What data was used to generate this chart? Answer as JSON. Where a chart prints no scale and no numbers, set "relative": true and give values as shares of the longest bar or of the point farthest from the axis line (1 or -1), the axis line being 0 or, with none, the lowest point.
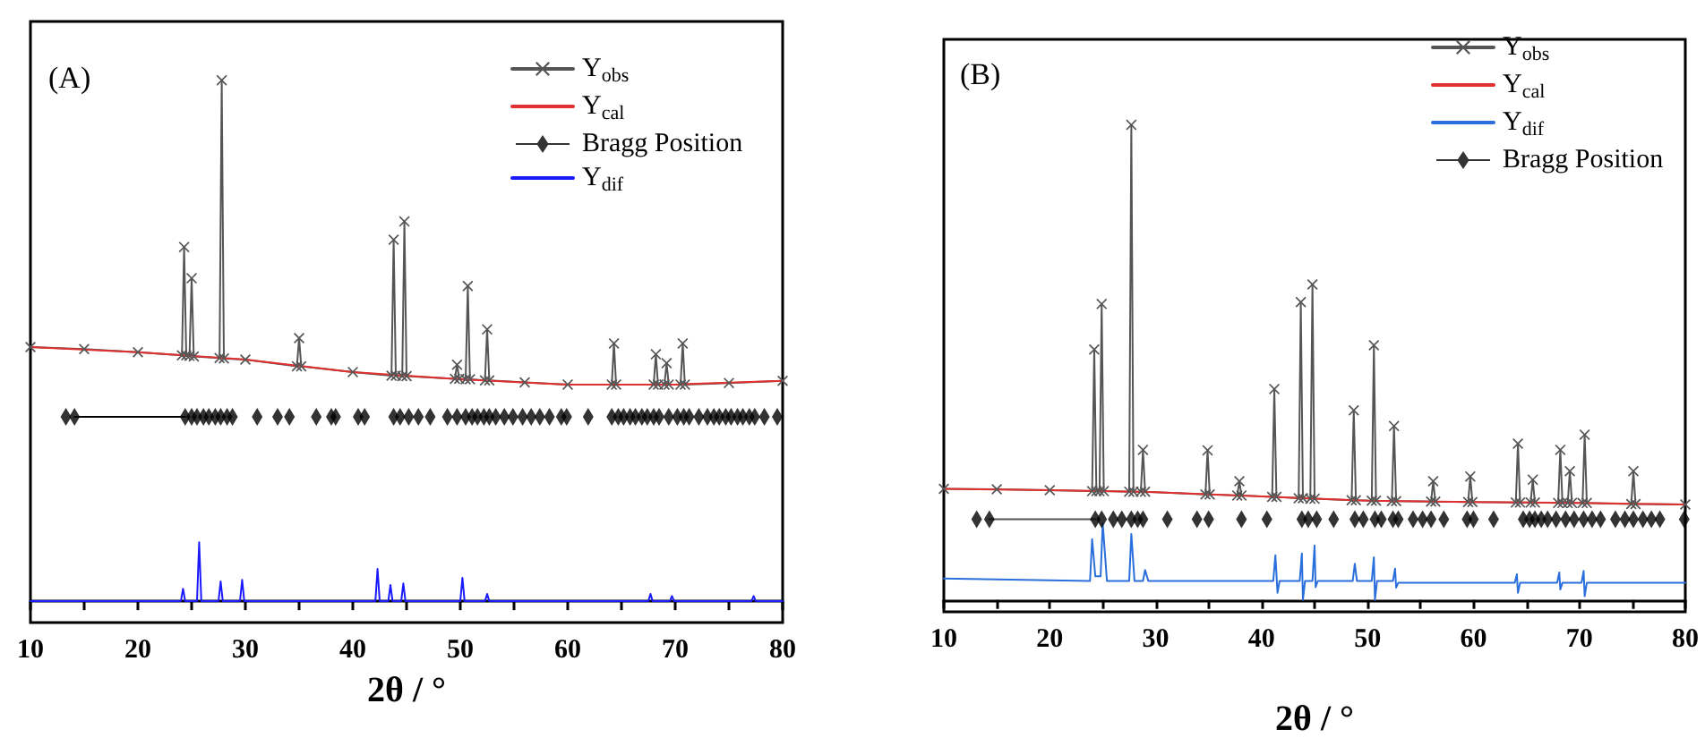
{
  "chart_data": [
    {
      "type": "line",
      "title": "(A)",
      "xlabel": "2θ / °",
      "relative": true,
      "legend": "top right",
      "tick_labels": "x",
      "xlim": [
        10,
        80
      ],
      "xticks": [
        10,
        {
          "value": 15,
          "label": null
        },
        20,
        {
          "value": 25,
          "label": null
        },
        30,
        {
          "value": 35,
          "label": null
        },
        40,
        {
          "value": 45,
          "label": null
        },
        50,
        {
          "value": 55,
          "label": null
        },
        60,
        {
          "value": 65,
          "label": null
        },
        70,
        {
          "value": 75,
          "label": null
        },
        80
      ],
      "series": [
        {
          "name": "Y$_{obs}$",
          "color": "#555555",
          "marker": "cross",
          "x": [
            10,
            15,
            20,
            24.1,
            24.3,
            24.5,
            24.8,
            25.0,
            25.2,
            27.6,
            27.8,
            28.0,
            30,
            34.8,
            35.0,
            35.2,
            40,
            43.6,
            43.8,
            44.0,
            44.6,
            44.8,
            45.0,
            49.5,
            49.7,
            49.9,
            50.5,
            50.7,
            50.9,
            52.3,
            52.5,
            52.7,
            56,
            60,
            64.1,
            64.3,
            64.5,
            68.0,
            68.2,
            68.4,
            69.0,
            69.2,
            69.4,
            70.5,
            70.7,
            70.9,
            75,
            80
          ],
          "values": [
            0.488,
            0.484,
            0.478,
            0.472,
            0.68,
            0.472,
            0.471,
            0.62,
            0.47,
            0.467,
            1.0,
            0.466,
            0.464,
            0.451,
            0.505,
            0.451,
            0.44,
            0.433,
            0.694,
            0.433,
            0.432,
            0.729,
            0.432,
            0.427,
            0.454,
            0.427,
            0.426,
            0.605,
            0.426,
            0.424,
            0.522,
            0.424,
            0.42,
            0.416,
            0.416,
            0.495,
            0.416,
            0.416,
            0.474,
            0.416,
            0.416,
            0.457,
            0.416,
            0.416,
            0.495,
            0.416,
            0.419,
            0.423
          ]
        },
        {
          "name": "Y$_{cal}$",
          "color": "#e03030",
          "marker": "none",
          "x": [
            10,
            20,
            30,
            40,
            50,
            60,
            70,
            80
          ],
          "values": [
            0.488,
            0.478,
            0.464,
            0.44,
            0.426,
            0.416,
            0.416,
            0.423
          ]
        },
        {
          "name": "Bragg Position",
          "type": "scatter",
          "marker": "diamond",
          "color": "#000000",
          "x": [
            13.3,
            14.1,
            24.4,
            25,
            25.5,
            26.1,
            26.6,
            27.2,
            27.7,
            28.3,
            28.8,
            31.1,
            33,
            34.1,
            36.6,
            38,
            38.4,
            40.5,
            41.1,
            43.8,
            44.4,
            45.2,
            46.1,
            47.2,
            48.8,
            49.7,
            50.5,
            51.1,
            51.6,
            52.2,
            52.7,
            53.3,
            54.1,
            54.9,
            55.8,
            56.6,
            57.4,
            58.3,
            59.4,
            59.9,
            61.9,
            64.1,
            64.7,
            65.2,
            65.8,
            66.3,
            66.9,
            67.4,
            68,
            68.5,
            69.4,
            70.2,
            70.8,
            71.3,
            72.2,
            73,
            73.6,
            74.1,
            74.7,
            75.2,
            75.8,
            76.3,
            76.9,
            77.4,
            78.3,
            79.5
          ],
          "values": [
            0.354,
            0.354,
            0.354,
            0.354,
            0.354,
            0.354,
            0.354,
            0.354,
            0.354,
            0.354,
            0.354,
            0.354,
            0.354,
            0.354,
            0.354,
            0.354,
            0.354,
            0.354,
            0.354,
            0.354,
            0.354,
            0.354,
            0.354,
            0.354,
            0.354,
            0.354,
            0.354,
            0.354,
            0.354,
            0.354,
            0.354,
            0.354,
            0.354,
            0.354,
            0.354,
            0.354,
            0.354,
            0.354,
            0.354,
            0.354,
            0.354,
            0.354,
            0.354,
            0.354,
            0.354,
            0.354,
            0.354,
            0.354,
            0.354,
            0.354,
            0.354,
            0.354,
            0.354,
            0.354,
            0.354,
            0.354,
            0.354,
            0.354,
            0.354,
            0.354,
            0.354,
            0.354,
            0.354,
            0.354,
            0.354,
            0.354
          ]
        },
        {
          "color": "#000000",
          "marker": "none",
          "x": [
            14.1,
            24.4
          ],
          "values": [
            0.354,
            0.354
          ]
        },
        {
          "name": "Y$_{dif}$",
          "color": "#1a1aff",
          "marker": "none",
          "x": [
            10,
            24.0,
            24.2,
            24.4,
            25.5,
            25.7,
            25.9,
            27.5,
            27.7,
            27.9,
            29.5,
            29.7,
            29.9,
            42.1,
            42.3,
            42.5,
            43.3,
            43.5,
            43.7,
            44.5,
            44.7,
            44.9,
            50.0,
            50.2,
            50.4,
            52.3,
            52.5,
            52.7,
            67.5,
            67.7,
            67.9,
            69.5,
            69.7,
            69.9,
            77.1,
            77.3,
            77.5,
            80
          ],
          "values": [
            0,
            0,
            0.024,
            0,
            0,
            0.113,
            0,
            0,
            0.038,
            0,
            0,
            0.041,
            0,
            0,
            0.062,
            0,
            0,
            0.031,
            0,
            0,
            0.034,
            0,
            0,
            0.045,
            0,
            0,
            0.014,
            0,
            0,
            0.014,
            0,
            0,
            0.01,
            0,
            0,
            0.01,
            0,
            0
          ]
        }
      ]
    },
    {
      "type": "line",
      "title": "(B)",
      "xlabel": "2θ / °",
      "relative": true,
      "legend": "top right",
      "tick_labels": "x",
      "xlim": [
        10,
        80
      ],
      "xticks": [
        10,
        {
          "value": 15,
          "label": null
        },
        20,
        {
          "value": 25,
          "label": null
        },
        30,
        {
          "value": 35,
          "label": null
        },
        40,
        {
          "value": 45,
          "label": null
        },
        50,
        {
          "value": 55,
          "label": null
        },
        60,
        {
          "value": 65,
          "label": null
        },
        70,
        {
          "value": 75,
          "label": null
        },
        80
      ],
      "series": [
        {
          "name": "Y$_{obs}$",
          "color": "#555555",
          "marker": "cross",
          "x": [
            10,
            15,
            20,
            24.0,
            24.2,
            24.4,
            24.7,
            24.9,
            25.1,
            27.5,
            27.7,
            27.9,
            28.6,
            28.8,
            29.0,
            34.7,
            34.9,
            35.1,
            37.7,
            37.9,
            38.1,
            41.0,
            41.2,
            41.4,
            43.5,
            43.7,
            43.9,
            44.6,
            44.8,
            45.0,
            48.5,
            48.7,
            48.9,
            50.4,
            50.6,
            50.8,
            52.3,
            52.5,
            52.7,
            56.0,
            56.2,
            56.4,
            59.5,
            59.7,
            59.9,
            64.0,
            64.2,
            64.4,
            65.4,
            65.6,
            65.8,
            68.0,
            68.2,
            68.4,
            68.9,
            69.1,
            69.3,
            70.3,
            70.5,
            70.7,
            74.9,
            75.1,
            75.3,
            80
          ],
          "values": [
            0.234,
            0.233,
            0.231,
            0.229,
            0.527,
            0.229,
            0.229,
            0.623,
            0.229,
            0.228,
            1.0,
            0.228,
            0.228,
            0.316,
            0.228,
            0.222,
            0.315,
            0.222,
            0.22,
            0.25,
            0.22,
            0.217,
            0.444,
            0.217,
            0.214,
            0.627,
            0.214,
            0.213,
            0.664,
            0.213,
            0.21,
            0.399,
            0.21,
            0.209,
            0.536,
            0.209,
            0.208,
            0.366,
            0.208,
            0.207,
            0.25,
            0.207,
            0.206,
            0.26,
            0.206,
            0.205,
            0.329,
            0.205,
            0.205,
            0.253,
            0.205,
            0.204,
            0.316,
            0.204,
            0.204,
            0.271,
            0.204,
            0.204,
            0.348,
            0.204,
            0.202,
            0.271,
            0.202,
            0.201
          ]
        },
        {
          "name": "Y$_{cal}$",
          "color": "#e03030",
          "marker": "none",
          "x": [
            10,
            20,
            30,
            40,
            50,
            60,
            70,
            80
          ],
          "values": [
            0.234,
            0.231,
            0.227,
            0.218,
            0.209,
            0.206,
            0.204,
            0.201
          ]
        },
        {
          "name": "Y$_{dif}$",
          "color": "#2a6fdb",
          "marker": "none",
          "x": [
            10,
            23.8,
            24.0,
            24.3,
            24.8,
            25.0,
            25.4,
            27.5,
            27.7,
            28.0,
            28.8,
            29.0,
            29.3,
            41.1,
            41.3,
            41.5,
            41.7,
            43.6,
            43.8,
            43.9,
            44.1,
            44.8,
            45.0,
            45.1,
            45.3,
            48.6,
            48.8,
            49.0,
            50.4,
            50.6,
            50.7,
            50.9,
            52.4,
            52.6,
            52.7,
            52.9,
            63.9,
            64.1,
            64.2,
            64.4,
            67.9,
            68.1,
            68.2,
            68.4,
            70.2,
            70.4,
            70.5,
            70.7,
            80
          ],
          "values": [
            0.045,
            0.04,
            0.128,
            0.05,
            0.05,
            0.161,
            0.04,
            0.04,
            0.139,
            0.04,
            0.04,
            0.063,
            0.04,
            0.04,
            0.094,
            0.015,
            0.04,
            0.04,
            0.098,
            0,
            0.04,
            0.04,
            0.115,
            0.027,
            0.04,
            0.04,
            0.076,
            0.04,
            0.04,
            0.09,
            0,
            0.04,
            0.04,
            0.066,
            0.026,
            0.036,
            0.036,
            0.054,
            0.015,
            0.036,
            0.036,
            0.058,
            0.022,
            0.036,
            0.036,
            0.061,
            0.008,
            0.036,
            0.036
          ]
        },
        {
          "name": "Bragg Position",
          "type": "scatter",
          "marker": "diamond",
          "color": "#000000",
          "x": [
            13.1,
            14.3,
            24.3,
            24.9,
            26,
            26.8,
            27.7,
            28.3,
            28.8,
            31.1,
            33.9,
            35,
            38.1,
            40.5,
            43.8,
            44.4,
            45.2,
            46.8,
            48.8,
            49.6,
            50.7,
            51.3,
            52.4,
            52.9,
            54.3,
            55.2,
            56,
            57.2,
            59.4,
            60,
            61.9,
            64.7,
            65.3,
            65.8,
            66.4,
            67,
            67.8,
            68.7,
            69.5,
            70.4,
            71.2,
            72,
            73.4,
            74.3,
            75.1,
            76,
            76.8,
            77.6,
            79.9
          ],
          "values": [
            0.17,
            0.17,
            0.17,
            0.17,
            0.17,
            0.17,
            0.17,
            0.17,
            0.17,
            0.17,
            0.17,
            0.17,
            0.17,
            0.17,
            0.17,
            0.17,
            0.17,
            0.17,
            0.17,
            0.17,
            0.17,
            0.17,
            0.17,
            0.17,
            0.17,
            0.17,
            0.17,
            0.17,
            0.17,
            0.17,
            0.17,
            0.17,
            0.17,
            0.17,
            0.17,
            0.17,
            0.17,
            0.17,
            0.17,
            0.17,
            0.17,
            0.17,
            0.17,
            0.17,
            0.17,
            0.17,
            0.17,
            0.17,
            0.17
          ]
        },
        {
          "color": "#555555",
          "marker": "none",
          "x": [
            14.3,
            24.3
          ],
          "values": [
            0.17,
            0.17
          ]
        }
      ]
    }
  ]
}
